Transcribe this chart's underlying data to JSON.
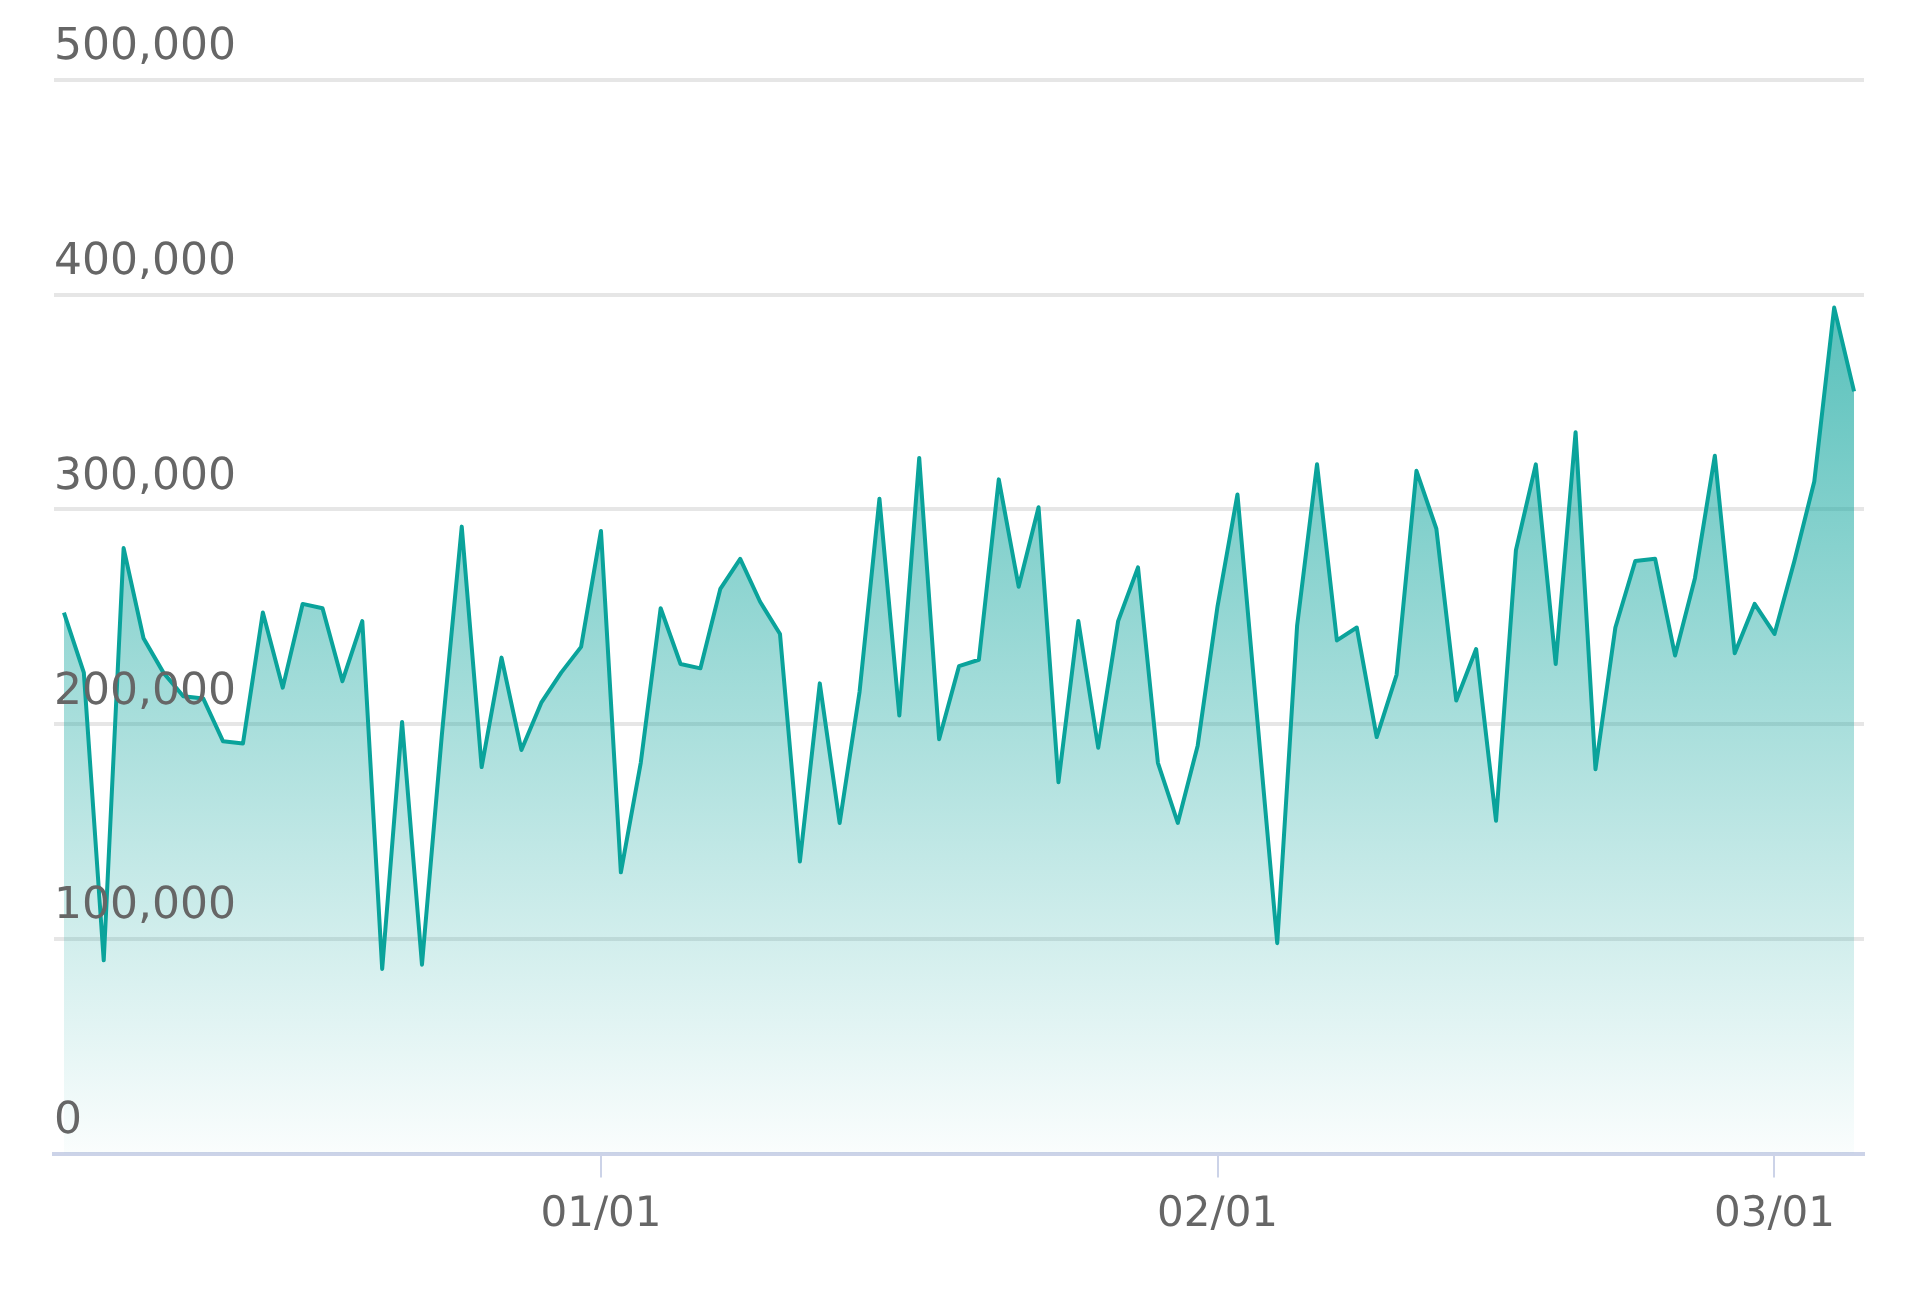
{
  "chart_data": {
    "type": "area",
    "categories": [
      null,
      null,
      null,
      null,
      null,
      null,
      null,
      null,
      null,
      null,
      null,
      null,
      null,
      null,
      null,
      null,
      null,
      null,
      null,
      null,
      null,
      null,
      null,
      null,
      null,
      null,
      null,
      "01/01",
      null,
      null,
      null,
      null,
      null,
      null,
      null,
      null,
      null,
      null,
      null,
      null,
      null,
      null,
      null,
      null,
      null,
      null,
      null,
      null,
      null,
      null,
      null,
      null,
      null,
      null,
      null,
      null,
      null,
      null,
      "02/01",
      null,
      null,
      null,
      null,
      null,
      null,
      null,
      null,
      null,
      null,
      null,
      null,
      null,
      null,
      null,
      null,
      null,
      null,
      null,
      null,
      null,
      null,
      null,
      null,
      null,
      null,
      null,
      "03/01",
      null,
      null,
      null,
      null
    ],
    "series": [
      {
        "color": "#0aa39b",
        "values": [
          252000,
          224000,
          90000,
          282000,
          240000,
          224000,
          213000,
          212000,
          192000,
          191000,
          252000,
          217000,
          256000,
          254000,
          220000,
          248000,
          86000,
          201000,
          88000,
          195000,
          292000,
          180000,
          231000,
          188000,
          210000,
          224000,
          236000,
          290000,
          131000,
          182000,
          254000,
          228000,
          226000,
          263000,
          277000,
          257000,
          242000,
          136000,
          219000,
          154000,
          215000,
          305000,
          204000,
          324000,
          193000,
          227000,
          230000,
          314000,
          264000,
          301000,
          173000,
          248000,
          189000,
          248000,
          273000,
          182000,
          154000,
          190000,
          255000,
          307000,
          202000,
          98000,
          246000,
          321000,
          239000,
          245000,
          194000,
          223000,
          318000,
          291000,
          211000,
          235000,
          155000,
          281000,
          321000,
          228000,
          336000,
          179000,
          245000,
          276000,
          277000,
          232000,
          268000,
          325000,
          233000,
          256000,
          242000,
          276000,
          313000,
          394000,
          355000
        ]
      }
    ],
    "ylim": [
      0,
      500000
    ],
    "yticks": [
      {
        "value": 0,
        "label": "0"
      },
      {
        "value": 100000,
        "label": "100,000"
      },
      {
        "value": 200000,
        "label": "200,000"
      },
      {
        "value": 300000,
        "label": "300,000"
      },
      {
        "value": 400000,
        "label": "400,000"
      },
      {
        "value": 500000,
        "label": "500,000"
      }
    ],
    "grid": "y",
    "legend": false,
    "marker": "none"
  }
}
